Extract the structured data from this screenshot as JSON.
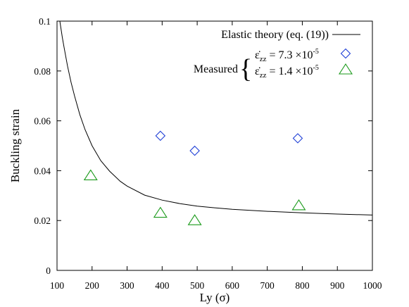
{
  "chart_data": {
    "type": "scatter",
    "title": "",
    "xlabel": "Ly (σ)",
    "ylabel": "Buckling strain",
    "xlim": [
      100,
      1000
    ],
    "ylim": [
      0,
      0.1
    ],
    "xticks": [
      100,
      200,
      300,
      400,
      500,
      600,
      700,
      800,
      900,
      1000
    ],
    "yticks": [
      0,
      0.02,
      0.04,
      0.06,
      0.08,
      0.1
    ],
    "xtick_labels": [
      "100",
      "200",
      "300",
      "400",
      "500",
      "600",
      "700",
      "800",
      "900",
      "1000"
    ],
    "ytick_labels": [
      "0",
      "0.02",
      "0.04",
      "0.06",
      "0.08",
      "0.1"
    ],
    "grid": false,
    "legend_position": "top-right",
    "legend_group_label": "Measured",
    "series": [
      {
        "name": "Elastic theory (eq. (19))",
        "kind": "line",
        "color": "#000000",
        "x": [
          108,
          115,
          120,
          130,
          140,
          150,
          165,
          180,
          200,
          225,
          250,
          280,
          300,
          350,
          400,
          450,
          500,
          550,
          600,
          700,
          800,
          900,
          1000
        ],
        "y": [
          0.1,
          0.0935,
          0.0895,
          0.082,
          0.0755,
          0.07,
          0.0625,
          0.0565,
          0.05,
          0.044,
          0.0398,
          0.0358,
          0.0338,
          0.0302,
          0.0282,
          0.0268,
          0.0258,
          0.0251,
          0.0245,
          0.0237,
          0.0231,
          0.0226,
          0.0222
        ]
      },
      {
        "name_parts": {
          "symbol": "ε̇",
          "sub": "zz",
          "mantissa": " = 7.3 ×10",
          "exp": "-5"
        },
        "kind": "points",
        "marker": "diamond",
        "color": "#1f3fd6",
        "x": [
          395,
          493,
          787
        ],
        "y": [
          0.054,
          0.048,
          0.053
        ]
      },
      {
        "name_parts": {
          "symbol": "ε̇",
          "sub": "zz",
          "mantissa": " = 1.4 ×10",
          "exp": "-5"
        },
        "kind": "points",
        "marker": "triangle",
        "color": "#1a9a1a",
        "x": [
          196,
          395,
          493,
          790
        ],
        "y": [
          0.038,
          0.023,
          0.02,
          0.026
        ]
      }
    ]
  }
}
